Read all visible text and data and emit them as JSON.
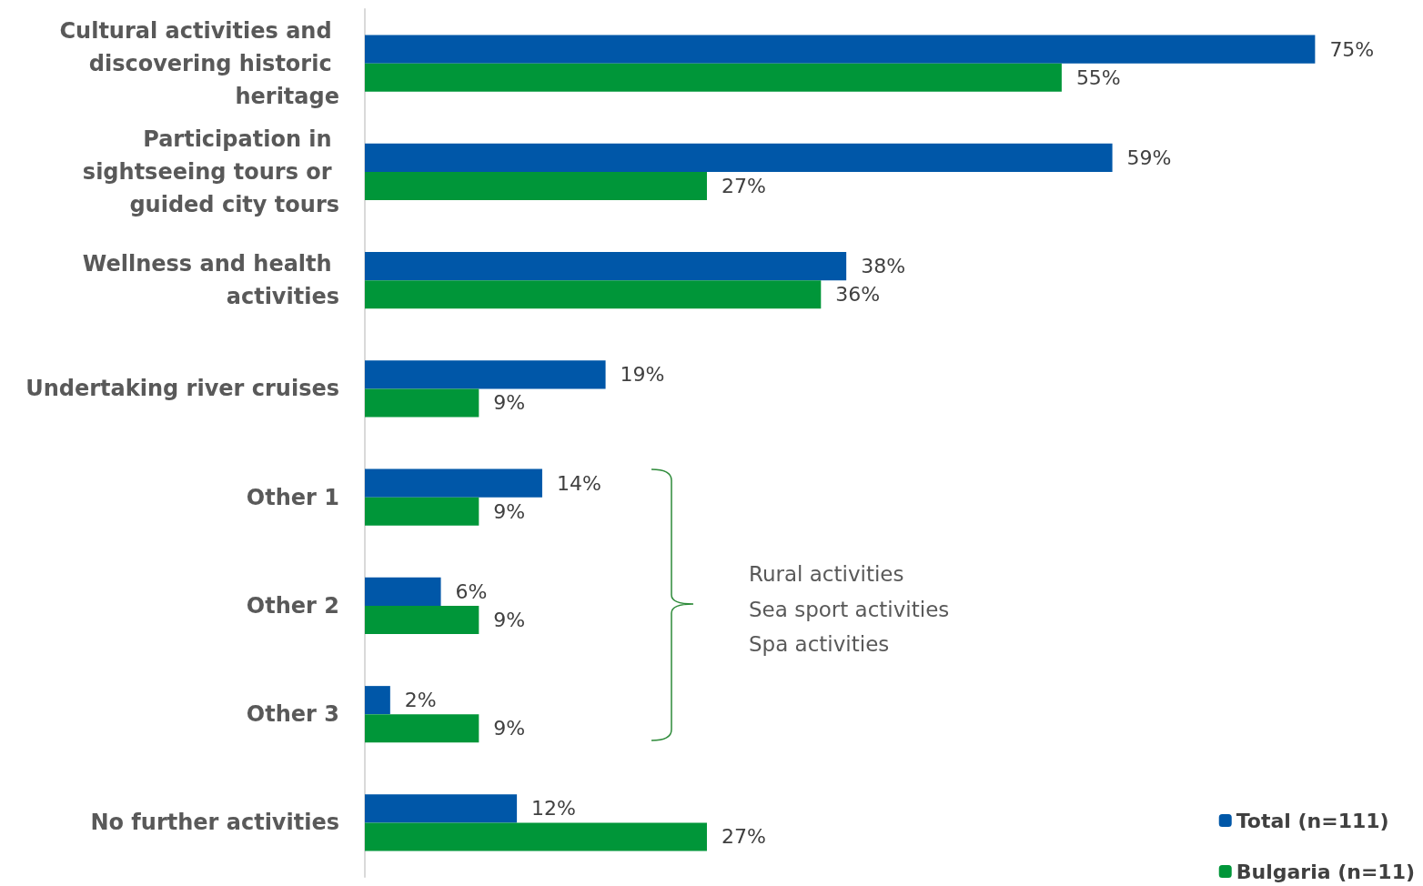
{
  "chart_data": {
    "type": "bar",
    "orientation": "horizontal",
    "categories": [
      "Cultural activities and discovering historic heritage",
      "Participation in sightseeing tours or guided city tours",
      "Wellness and health activities",
      "Undertaking river cruises",
      "Other 1",
      "Other 2",
      "Other 3",
      "No further activities"
    ],
    "series": [
      {
        "name": "Total (n=111)",
        "color": "#0057a8",
        "values": [
          75,
          59,
          38,
          19,
          14,
          6,
          2,
          12
        ],
        "value_labels": [
          "75%",
          "59%",
          "38%",
          "19%",
          "14%",
          "6%",
          "2%",
          "12%"
        ]
      },
      {
        "name": "Bulgaria (n=11)",
        "color": "#009639",
        "values": [
          55,
          27,
          36,
          9,
          9,
          9,
          9,
          27
        ],
        "value_labels": [
          "55%",
          "27%",
          "36%",
          "9%",
          "9%",
          "9%",
          "9%",
          "27%"
        ]
      }
    ],
    "annotations": [
      "Rural activities",
      "Sea sport activities",
      "Spa activities"
    ],
    "legend": "bottom right",
    "grid": false
  }
}
